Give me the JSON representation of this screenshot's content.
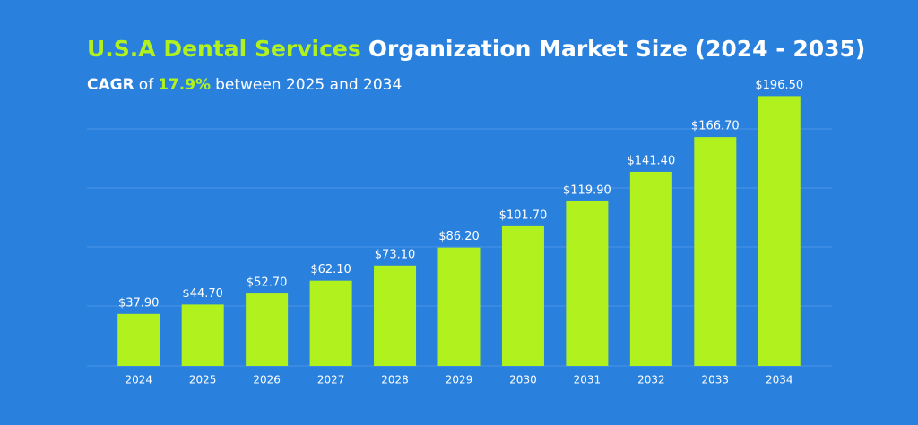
{
  "chart_data": {
    "type": "bar",
    "title": [
      {
        "text": "U.S.A Dental Services",
        "color": "#b1f21e"
      },
      {
        "text": "Organization Market Size (2024 - 2035)"
      }
    ],
    "subtitle": [
      {
        "text": "CAGR",
        "bold": true
      },
      {
        "text": "of"
      },
      {
        "text": "17.9%",
        "bold": true,
        "color": "#b1f21e"
      },
      {
        "text": "between 2025 and 2034"
      }
    ],
    "categories": [
      "2024",
      "2025",
      "2026",
      "2027",
      "2028",
      "2029",
      "2030",
      "2031",
      "2032",
      "2033",
      "2034"
    ],
    "values": [
      37.9,
      44.7,
      52.7,
      62.1,
      73.1,
      86.2,
      101.7,
      119.9,
      141.4,
      166.7,
      196.5
    ],
    "value_labels": [
      "$37.90",
      "$44.70",
      "$52.70",
      "$62.10",
      "$73.10",
      "$86.20",
      "$101.70",
      "$119.90",
      "$141.40",
      "$166.70",
      "$196.50"
    ],
    "color": "#b1f21e",
    "ylim": [
      0,
      200
    ]
  }
}
